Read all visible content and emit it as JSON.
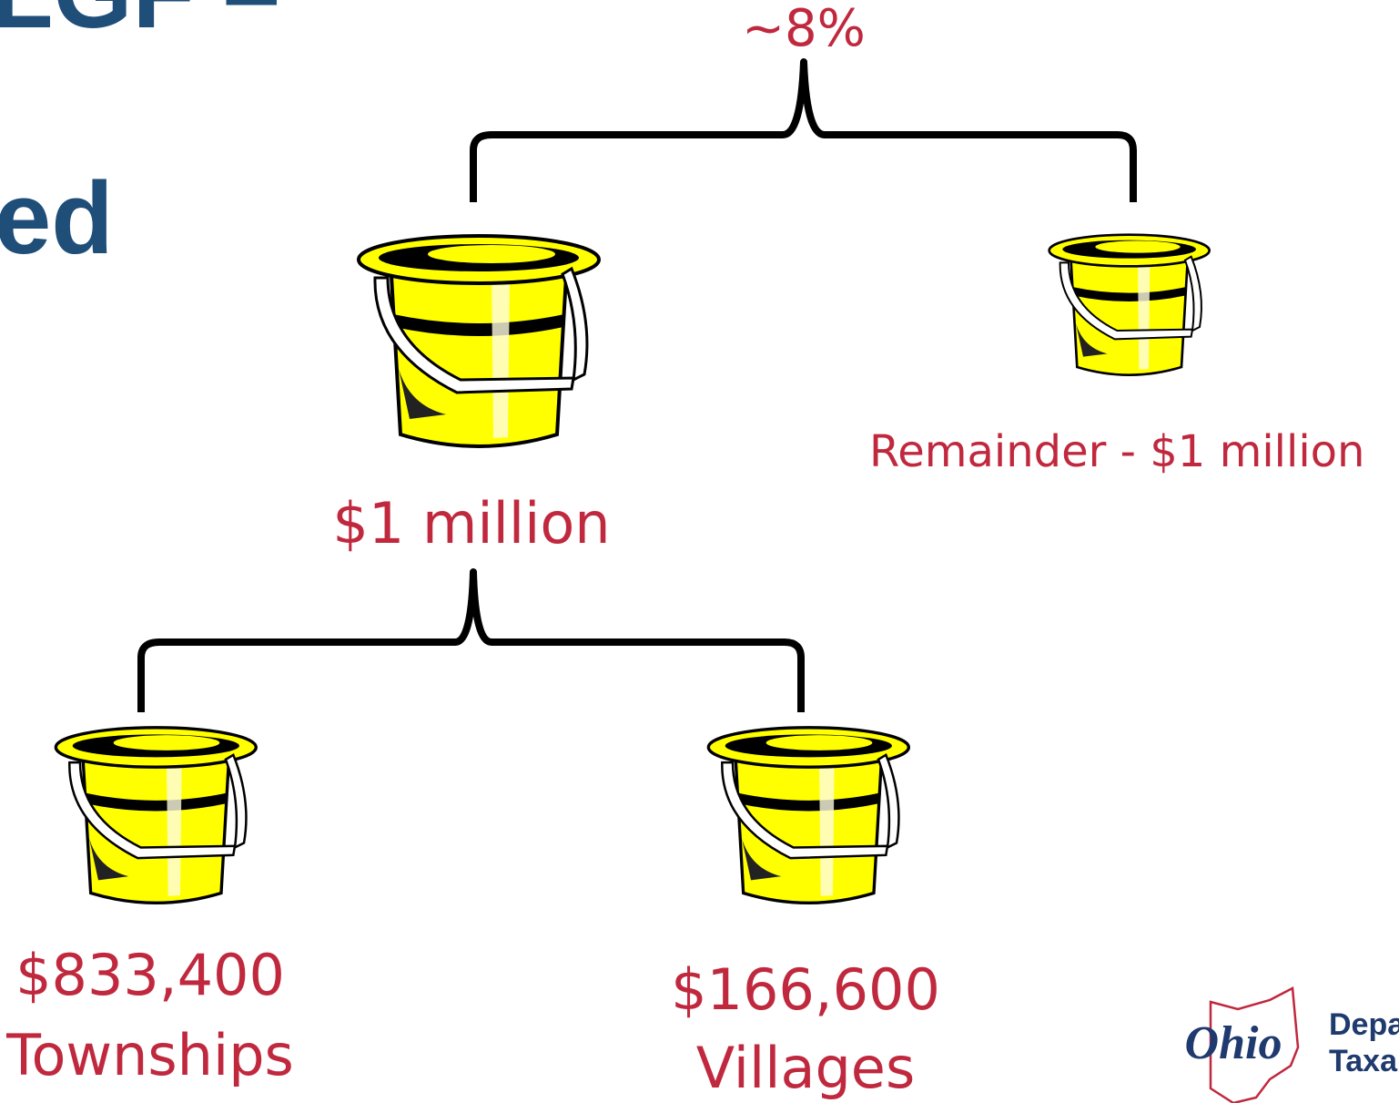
{
  "title_fragments": [
    "LGF –",
    "ed"
  ],
  "top_label": "~8%",
  "nodes": [
    {
      "label": "$1 million"
    },
    {
      "label": "Remainder - $1 million"
    },
    {
      "label": "$833,400",
      "sublabel": "Townships"
    },
    {
      "label": "$166,600",
      "sublabel": "Villages"
    }
  ],
  "logo": {
    "script": "Ohio",
    "lines": [
      "Depa",
      "Taxa"
    ]
  }
}
